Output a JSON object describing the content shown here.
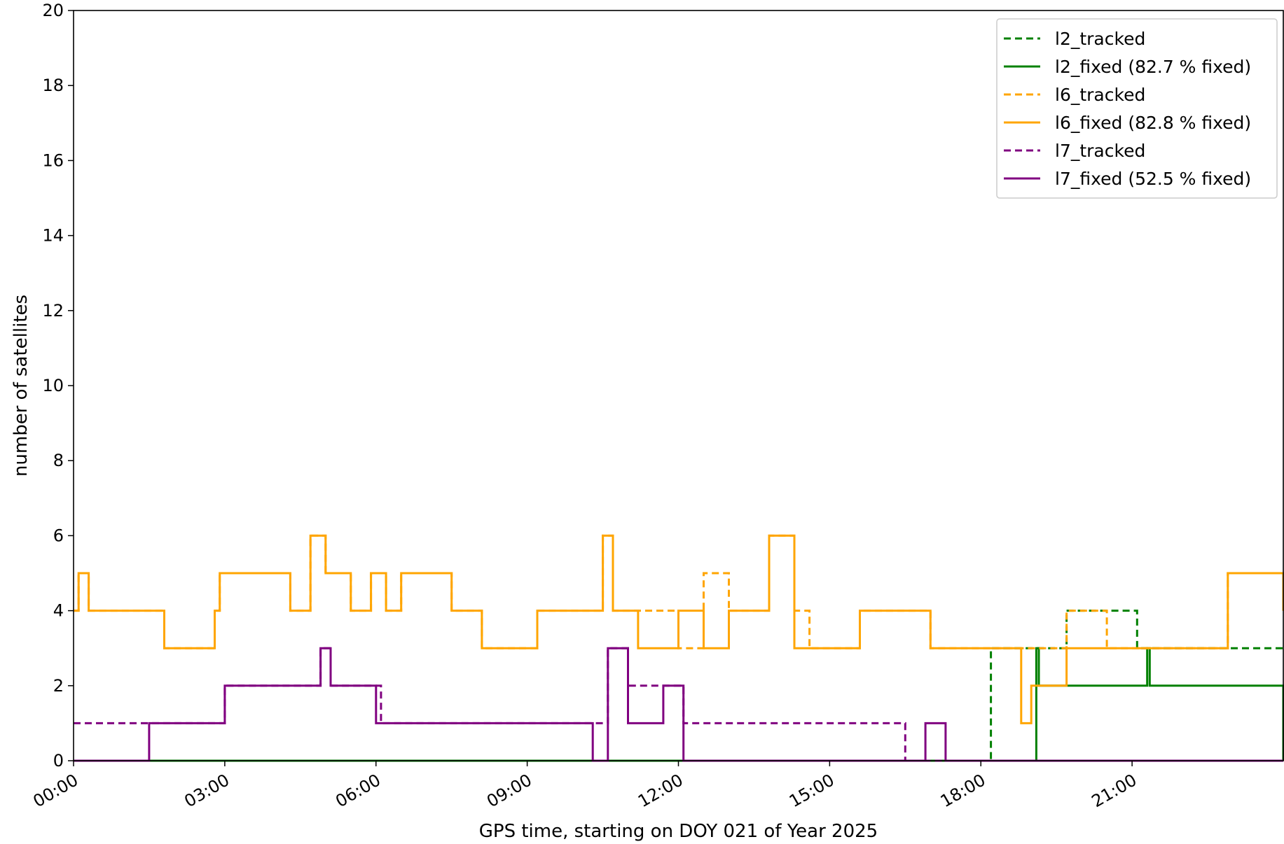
{
  "chart_data": {
    "type": "line",
    "title": "",
    "xlabel": "GPS time, starting on DOY 021 of Year 2025",
    "ylabel": "number of satellites",
    "xlim": [
      0,
      24
    ],
    "ylim": [
      0,
      20
    ],
    "x_unit": "hours",
    "x_ticks": [
      {
        "value": 0,
        "label": "00:00"
      },
      {
        "value": 3,
        "label": "03:00"
      },
      {
        "value": 6,
        "label": "06:00"
      },
      {
        "value": 9,
        "label": "09:00"
      },
      {
        "value": 12,
        "label": "12:00"
      },
      {
        "value": 15,
        "label": "15:00"
      },
      {
        "value": 18,
        "label": "18:00"
      },
      {
        "value": 21,
        "label": "21:00"
      }
    ],
    "y_ticks": [
      0,
      2,
      4,
      6,
      8,
      10,
      12,
      14,
      16,
      18,
      20
    ],
    "grid": false,
    "legend_position": "top-right",
    "series": [
      {
        "name": "l2_tracked",
        "color": "#008000",
        "dash": true,
        "x": [
          0,
          18.2,
          19.1,
          19.7,
          21.1,
          21.3,
          21.7,
          22.5,
          22.9,
          24
        ],
        "y": [
          0,
          3,
          3,
          4,
          3,
          3,
          3,
          3,
          3,
          3
        ]
      },
      {
        "name": "l2_fixed (82.7 % fixed)",
        "color": "#008000",
        "dash": false,
        "x": [
          0,
          19.1,
          19.15,
          21.3,
          21.35,
          24
        ],
        "y": [
          0,
          3,
          2,
          3,
          2,
          0
        ]
      },
      {
        "name": "l6_tracked",
        "color": "#FFA500",
        "dash": true,
        "x": [
          0,
          0.1,
          0.3,
          1.4,
          1.8,
          2.8,
          2.9,
          3.7,
          4.3,
          4.7,
          5.0,
          5.5,
          5.9,
          6.2,
          6.5,
          7.5,
          8.1,
          9.2,
          10.2,
          10.5,
          10.7,
          11.2,
          12.0,
          12.5,
          13.0,
          13.8,
          14.3,
          14.6,
          15.6,
          16.3,
          17.0,
          18.0,
          19.0,
          19.7,
          20.5,
          21.5,
          22.3,
          22.9,
          24
        ],
        "y": [
          4,
          5,
          4,
          4,
          3,
          4,
          5,
          5,
          4,
          6,
          5,
          4,
          5,
          4,
          5,
          4,
          3,
          4,
          4,
          6,
          4,
          4,
          3,
          5,
          4,
          6,
          4,
          3,
          4,
          4,
          3,
          3,
          3,
          4,
          3,
          3,
          3,
          5,
          4
        ]
      },
      {
        "name": "l6_fixed (82.8 % fixed)",
        "color": "#FFA500",
        "dash": false,
        "x": [
          0,
          0.1,
          0.3,
          1.4,
          1.8,
          2.8,
          2.9,
          3.7,
          4.3,
          4.7,
          5.0,
          5.5,
          5.9,
          6.2,
          6.5,
          7.5,
          8.1,
          9.2,
          10.2,
          10.5,
          10.7,
          11.2,
          12.0,
          12.5,
          13.0,
          13.8,
          14.3,
          14.6,
          15.6,
          16.3,
          17.0,
          18.0,
          18.8,
          19.0,
          19.7,
          20.5,
          21.5,
          22.3,
          22.9,
          24
        ],
        "y": [
          4,
          5,
          4,
          4,
          3,
          4,
          5,
          5,
          4,
          6,
          5,
          4,
          5,
          4,
          5,
          4,
          3,
          4,
          4,
          6,
          4,
          3,
          4,
          3,
          4,
          6,
          3,
          3,
          4,
          4,
          3,
          3,
          1,
          2,
          3,
          3,
          3,
          3,
          5,
          4
        ]
      },
      {
        "name": "l7_tracked",
        "color": "#800080",
        "dash": true,
        "x": [
          0,
          1.5,
          1.75,
          2.8,
          3.0,
          3.5,
          4.4,
          4.9,
          5.1,
          6.1,
          9.0,
          10.3,
          10.6,
          11.0,
          11.7,
          12.1,
          14.7,
          16.5,
          17.2,
          24
        ],
        "y": [
          1,
          1,
          1,
          1,
          2,
          2,
          2,
          3,
          2,
          1,
          1,
          1,
          3,
          2,
          2,
          1,
          1,
          0,
          0,
          0
        ]
      },
      {
        "name": "l7_fixed (52.5 % fixed)",
        "color": "#800080",
        "dash": false,
        "x": [
          0,
          1.5,
          1.7,
          2.8,
          3.0,
          3.5,
          4.4,
          4.9,
          5.1,
          5.8,
          6.0,
          9.0,
          10.3,
          10.6,
          11.0,
          11.7,
          12.1,
          16.5,
          16.9,
          17.3,
          24
        ],
        "y": [
          0,
          1,
          1,
          1,
          2,
          2,
          2,
          3,
          2,
          2,
          1,
          1,
          0,
          3,
          1,
          2,
          0,
          0,
          1,
          0,
          0
        ]
      }
    ]
  }
}
